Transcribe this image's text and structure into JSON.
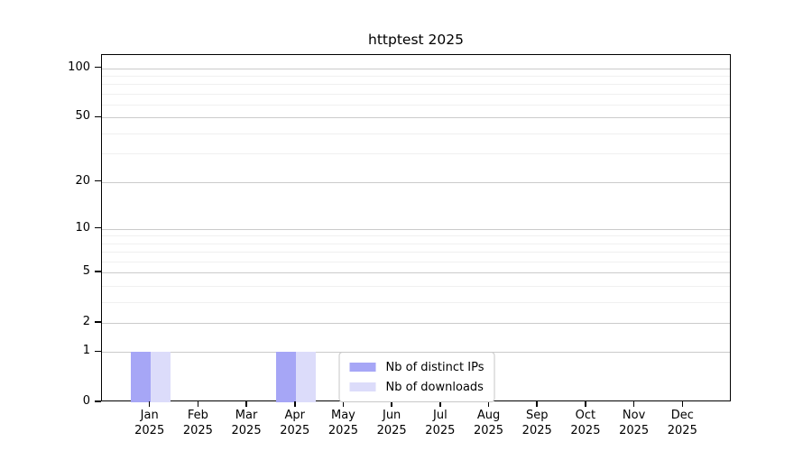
{
  "chart_data": {
    "type": "bar",
    "title": "httptest 2025",
    "categories": [
      "Jan",
      "Feb",
      "Mar",
      "Apr",
      "May",
      "Jun",
      "Jul",
      "Aug",
      "Sep",
      "Oct",
      "Nov",
      "Dec"
    ],
    "year_label": "2025",
    "series": [
      {
        "name": "Nb of distinct IPs",
        "color": "#a6a6f6",
        "values": [
          1,
          0,
          0,
          1,
          0,
          0,
          0,
          0,
          0,
          0,
          0,
          0
        ]
      },
      {
        "name": "Nb of downloads",
        "color": "#dcdcfa",
        "values": [
          1,
          0,
          0,
          1,
          0,
          0,
          0,
          0,
          0,
          0,
          0,
          0
        ]
      }
    ],
    "y_axis": {
      "scale": "log10(1+x)",
      "major_ticks": [
        0,
        1,
        2,
        5,
        10,
        20,
        50,
        100
      ],
      "minor_ticks": [
        3,
        4,
        6,
        7,
        8,
        9,
        30,
        40,
        60,
        70,
        80,
        90
      ],
      "max": 120
    },
    "x_axis": {
      "tick_label_lines": 2
    },
    "legend": {
      "position": "lower center"
    },
    "grid": {
      "major_color": "#cbcbcb",
      "minor_color": "#f0f0f0"
    },
    "axis_color": "#000000",
    "background": "#ffffff"
  }
}
